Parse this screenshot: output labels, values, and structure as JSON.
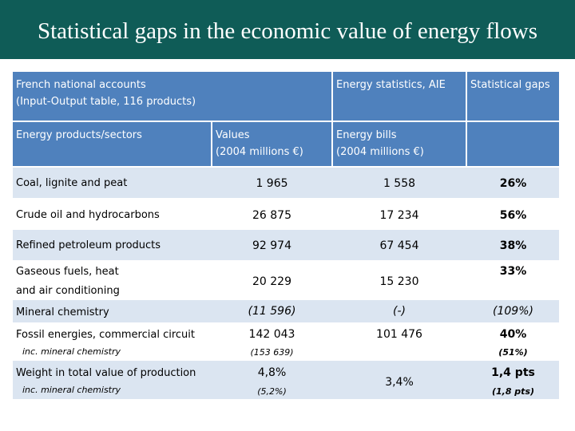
{
  "title": "Statistical gaps in the economic value of energy flows",
  "header": {
    "col1_line1": "French national accounts",
    "col1_line2": "(Input-Output table, 116 products)",
    "col3_title": "Energy statistics, AIE",
    "col4_title": "Statistical gaps",
    "col1_sub": "Energy products/sectors",
    "col2_line1": "Values",
    "col2_line2": "(2004 millions €)",
    "col3_line1": "Energy bills",
    "col3_line2": "(2004 millions €)"
  },
  "rows": [
    {
      "label": "Coal, lignite and peat",
      "values": "1 965",
      "bills": "1 558",
      "gap": "26%"
    },
    {
      "label": "Crude oil and hydrocarbons",
      "values": "26 875",
      "bills": "17 234",
      "gap": "56%"
    },
    {
      "label": "Refined petroleum products",
      "values": "92 974",
      "bills": "67 454",
      "gap": "38%"
    },
    {
      "label_line1": "Gaseous fuels, heat",
      "label_line2": "and air conditioning",
      "values": "20 229",
      "bills": "15 230",
      "gap": "33%"
    },
    {
      "label": "Mineral chemistry",
      "values": "(11 596)",
      "bills": "(-)",
      "gap": "(109%)"
    },
    {
      "label": "Fossil energies, commercial circuit",
      "sublabel": "inc. mineral chemistry",
      "values": "142 043",
      "values_sub": "(153 639)",
      "bills": "101 476",
      "gap": "40%",
      "gap_sub": "(51%)"
    },
    {
      "label": "Weight in total value of production",
      "sublabel": "inc. mineral chemistry",
      "values": "4,8%",
      "values_sub": "(5,2%)",
      "bills": "3,4%",
      "gap": "1,4 pts",
      "gap_sub": "(1,8 pts)"
    }
  ]
}
